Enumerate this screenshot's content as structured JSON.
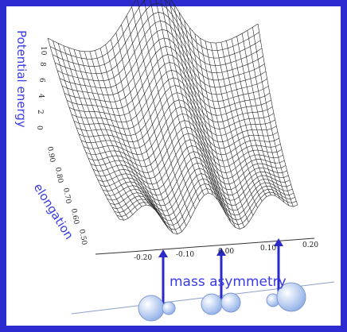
{
  "figure": {
    "energy_axis_label": "Potential energy",
    "elongation_axis_label": "elongation",
    "asymmetry_axis_label": "mass asymmetry",
    "energy_ticks": [
      "10",
      "8",
      "6",
      "4",
      "2",
      "0"
    ],
    "elongation_ticks": [
      "0.90",
      "0.80",
      "0.70",
      "0.60",
      "0.50"
    ],
    "asymmetry_ticks": [
      "-0.20",
      "-0.10",
      "0.00",
      "0.10",
      "0.20"
    ]
  }
}
